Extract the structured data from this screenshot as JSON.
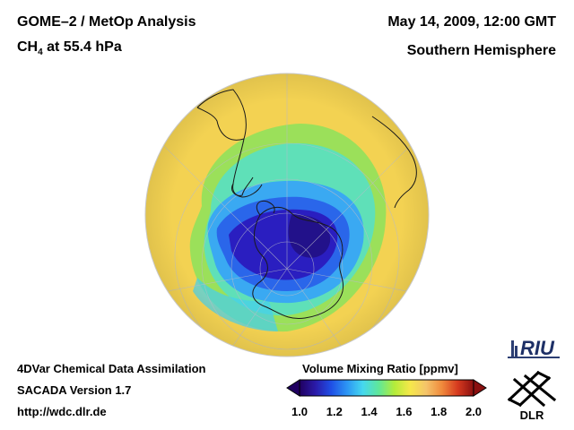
{
  "header": {
    "title_line1": "GOME–2 / MetOp Analysis",
    "species": "CH",
    "species_sub": "4",
    "level": " at 55.4 hPa",
    "datetime": "May 14, 2009, 12:00 GMT",
    "region": "Southern Hemisphere"
  },
  "footer": {
    "method": "4DVar Chemical Data Assimilation",
    "version": "SACADA Version 1.7",
    "url": "http://wdc.dlr.de"
  },
  "colorbar": {
    "title": "Volume Mixing Ratio [ppmv]",
    "ticks": [
      "1.0",
      "1.2",
      "1.4",
      "1.6",
      "1.8",
      "2.0"
    ],
    "min": 1.0,
    "max": 2.0,
    "colors": [
      "#200060",
      "#2a1aa8",
      "#1f4fe6",
      "#2c95f4",
      "#45d8ef",
      "#5fe79a",
      "#b4ec3a",
      "#f6e84a",
      "#f4c46a",
      "#f08a3c",
      "#d63a1f",
      "#8a1010"
    ]
  },
  "logos": {
    "riu_text": "RIU",
    "dlr_text": "DLR"
  },
  "map": {
    "projection": "orthographic",
    "center": "South Pole",
    "background_value_ppmv": 1.6,
    "polar_vortex_min_ppmv": 1.05,
    "land_outlines": [
      "south-america-outline",
      "africa-outline",
      "antarctica-outline",
      "antarctic-peninsula-outline"
    ]
  }
}
